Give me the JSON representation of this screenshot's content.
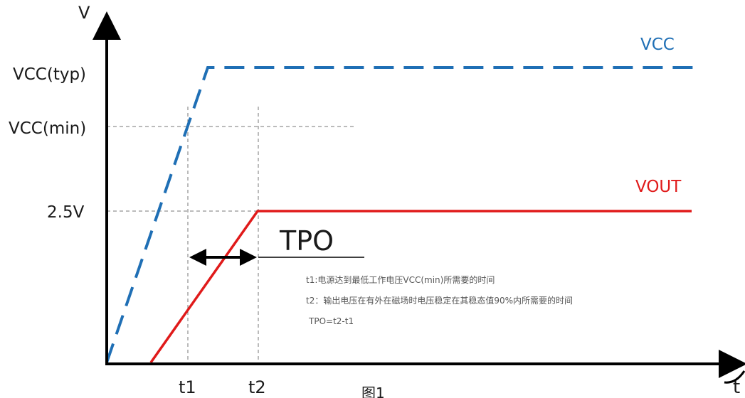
{
  "axes": {
    "y_label": "V",
    "x_label": "t",
    "y_ticks": [
      "VCC(typ)",
      "VCC(min)",
      "2.5V"
    ],
    "x_ticks": [
      "t1",
      "t2"
    ]
  },
  "series": {
    "vcc": {
      "label": "VCC",
      "color": "#1f6fb5"
    },
    "vout": {
      "label": "VOUT",
      "color": "#e01a1a"
    }
  },
  "tpo": {
    "label": "TPO"
  },
  "notes": [
    "t1:电源达到最低工作电压VCC(min)所需要的时间",
    "t2：输出电压在有外在磁场时电压稳定在其稳态值90%内所需要的时间",
    "TPO=t2-t1"
  ],
  "caption": "图1"
}
